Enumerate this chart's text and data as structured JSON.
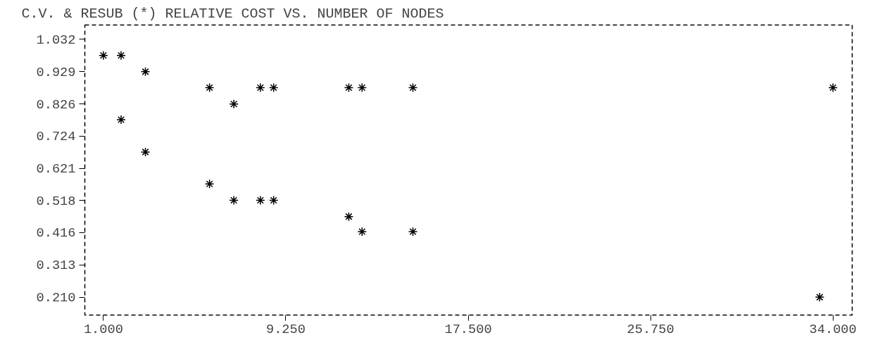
{
  "chart_data": {
    "type": "scatter",
    "title": "C.V. & RESUB (*) RELATIVE COST VS. NUMBER OF NODES",
    "x": [
      1,
      1.8,
      1.8,
      2.9,
      2.9,
      5.8,
      5.8,
      6.9,
      6.9,
      8.1,
      8.7,
      8.1,
      8.7,
      12.1,
      12.7,
      12.1,
      12.7,
      15,
      15,
      33.4,
      34
    ],
    "series": [
      {
        "color": "#000000",
        "values": [
          0.981,
          0.981,
          0.776,
          0.929,
          0.673,
          0.878,
          0.571,
          0.826,
          0.519,
          0.878,
          0.878,
          0.519,
          0.519,
          0.878,
          0.878,
          0.467,
          0.419,
          0.878,
          0.419,
          0.21,
          0.878
        ]
      }
    ],
    "marker": "cross",
    "grid": false,
    "xlim": [
      0.16,
      34.87
    ],
    "ylim": [
      0.153,
      1.078
    ],
    "xticks": [
      {
        "value": 1,
        "label": "1.000"
      },
      {
        "value": 9.25,
        "label": "9.250"
      },
      {
        "value": 17.5,
        "label": "17.500"
      },
      {
        "value": 25.75,
        "label": "25.750"
      },
      {
        "value": 34,
        "label": "34.000"
      }
    ],
    "yticks": [
      1.032,
      0.929,
      0.826,
      0.724,
      0.621,
      0.518,
      0.416,
      0.313,
      {
        "value": 0.21,
        "label": "0.210"
      }
    ]
  }
}
